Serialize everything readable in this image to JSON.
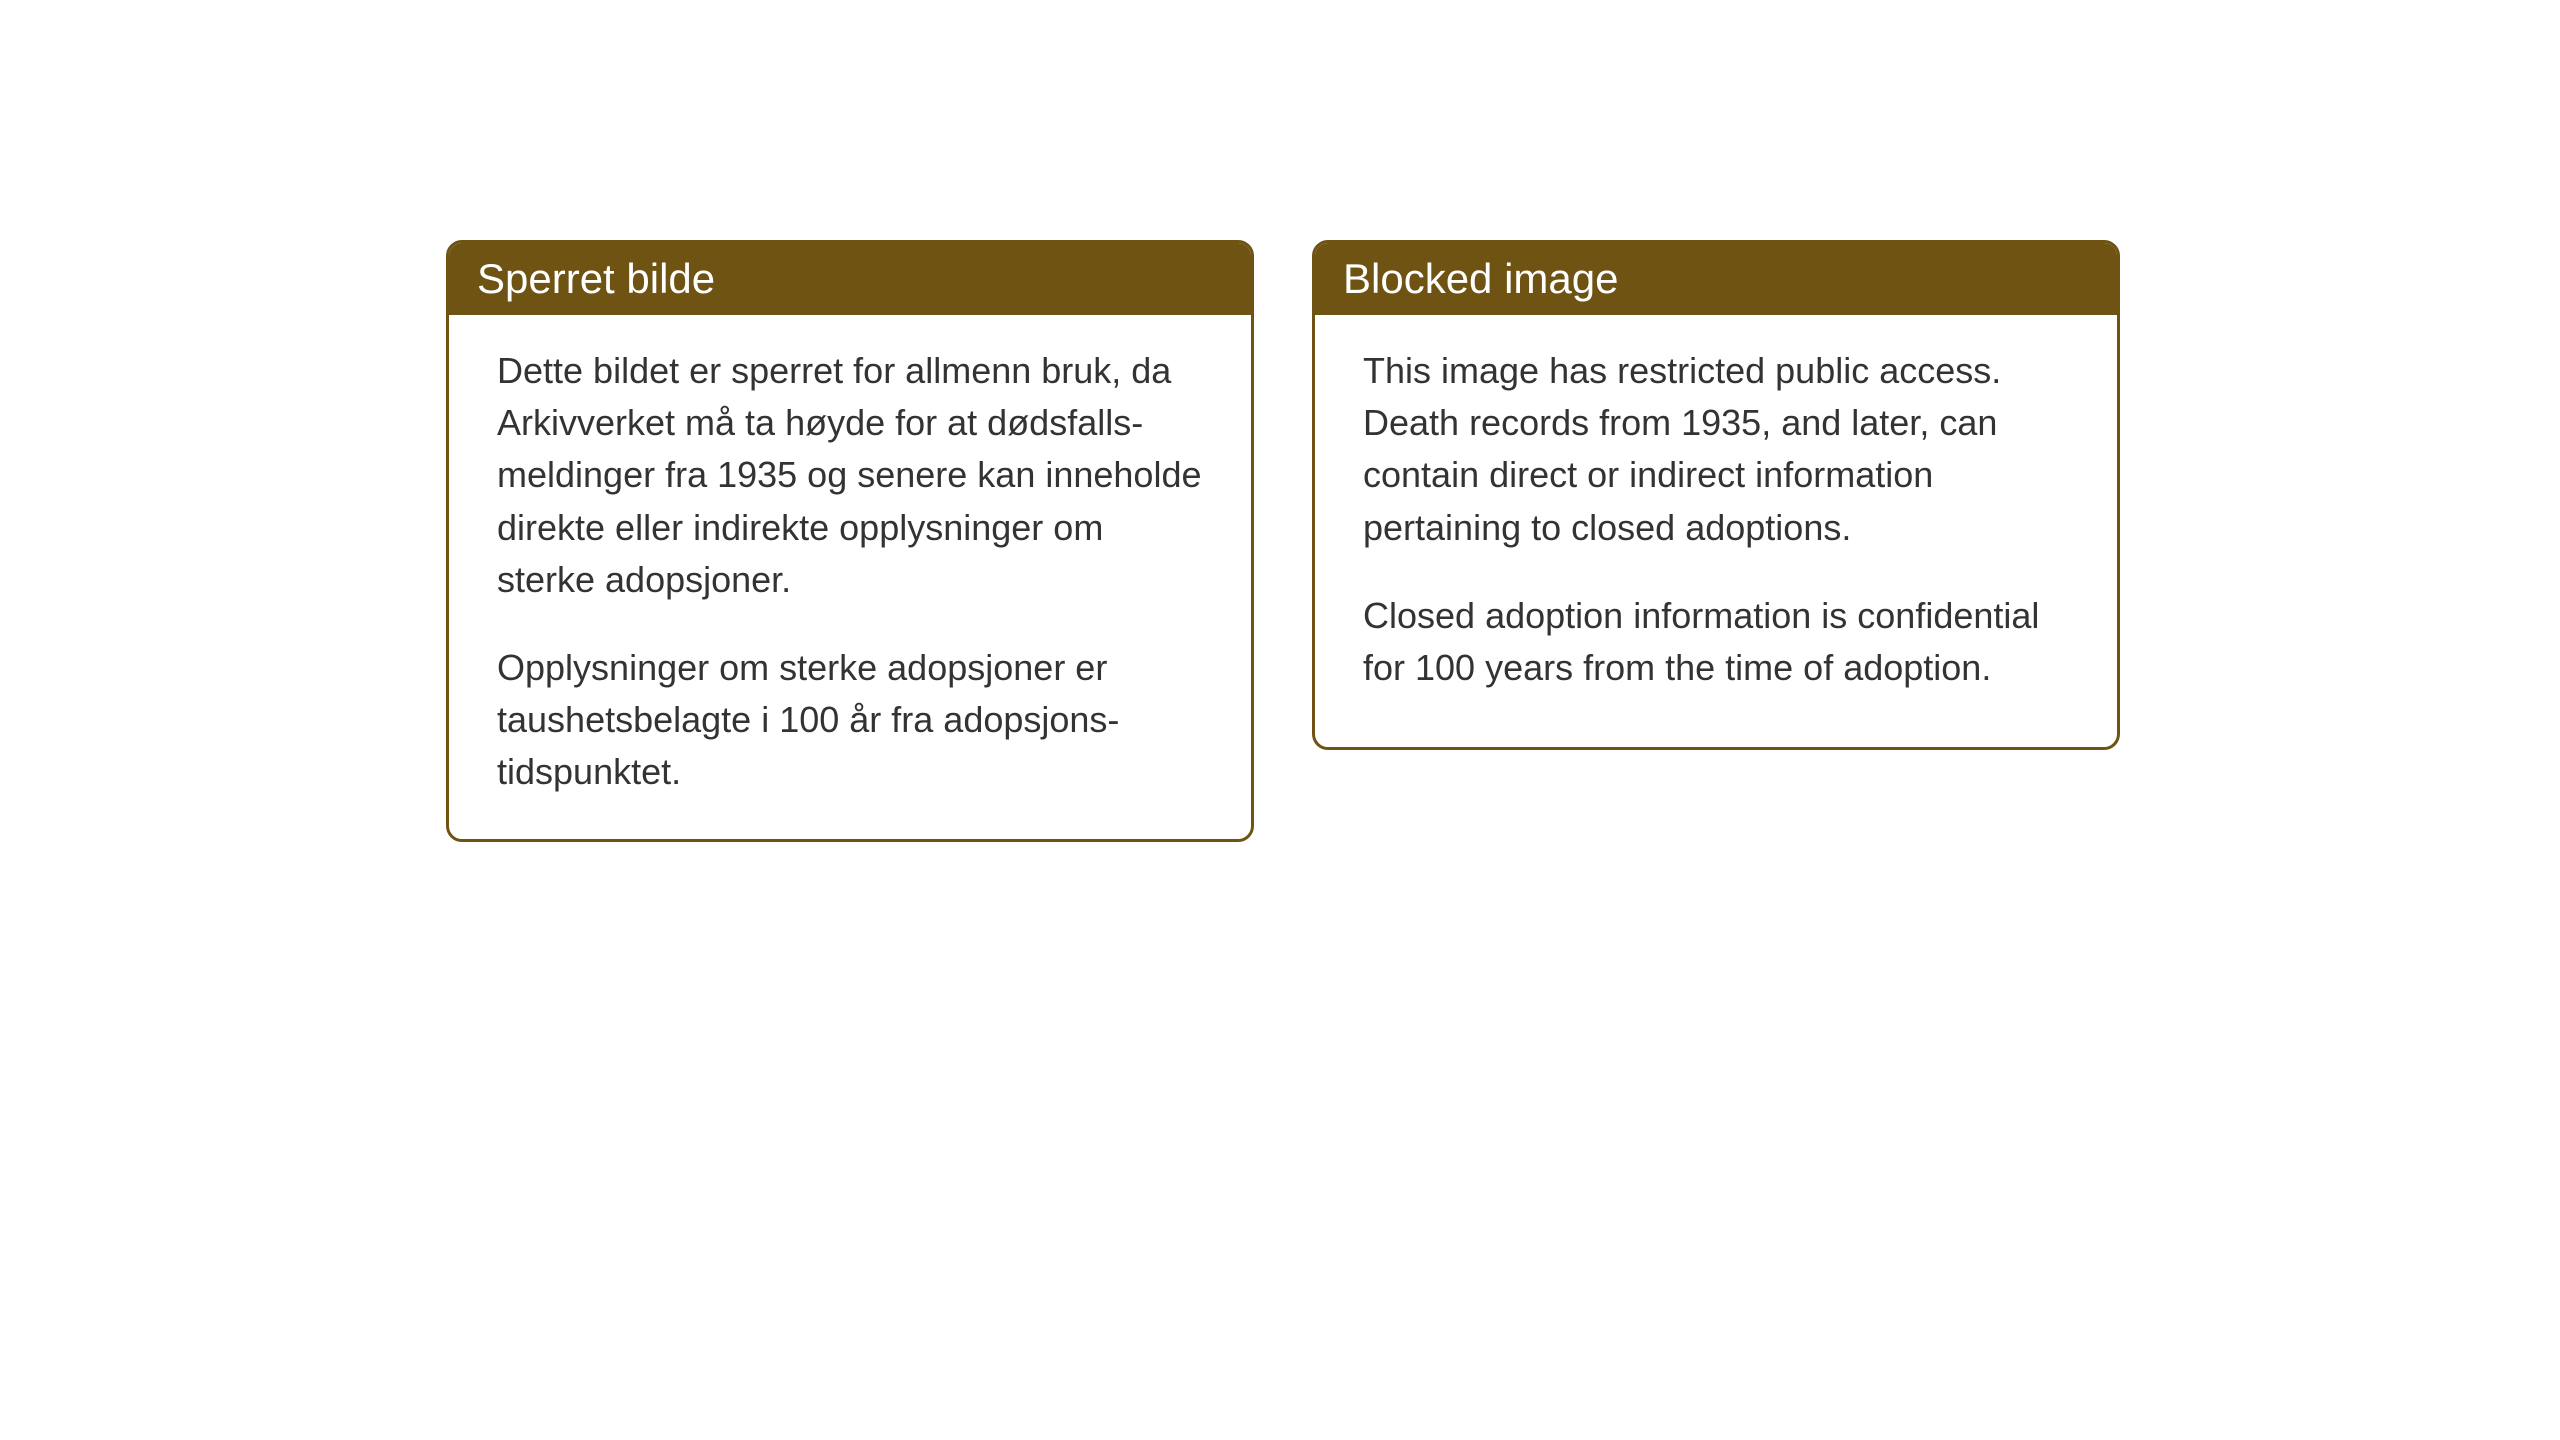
{
  "cards": {
    "norwegian": {
      "title": "Sperret bilde",
      "paragraph1": "Dette bildet er sperret for allmenn bruk, da Arkivverket må ta høyde for at dødsfalls-meldinger fra 1935 og senere kan inneholde direkte eller indirekte opplysninger om sterke adopsjoner.",
      "paragraph2": "Opplysninger om sterke adopsjoner er taushetsbelagte i 100 år fra adopsjons-tidspunktet."
    },
    "english": {
      "title": "Blocked image",
      "paragraph1": "This image has restricted public access. Death records from 1935, and later, can contain direct or indirect information pertaining to closed adoptions.",
      "paragraph2": "Closed adoption information is confidential for 100 years from the time of adoption."
    }
  },
  "styling": {
    "header_bg_color": "#6f5313",
    "border_color": "#6f5313",
    "header_text_color": "#ffffff",
    "body_text_color": "#333333",
    "background_color": "#ffffff",
    "header_fontsize": 42,
    "body_fontsize": 36,
    "border_radius": 16,
    "border_width": 3
  }
}
